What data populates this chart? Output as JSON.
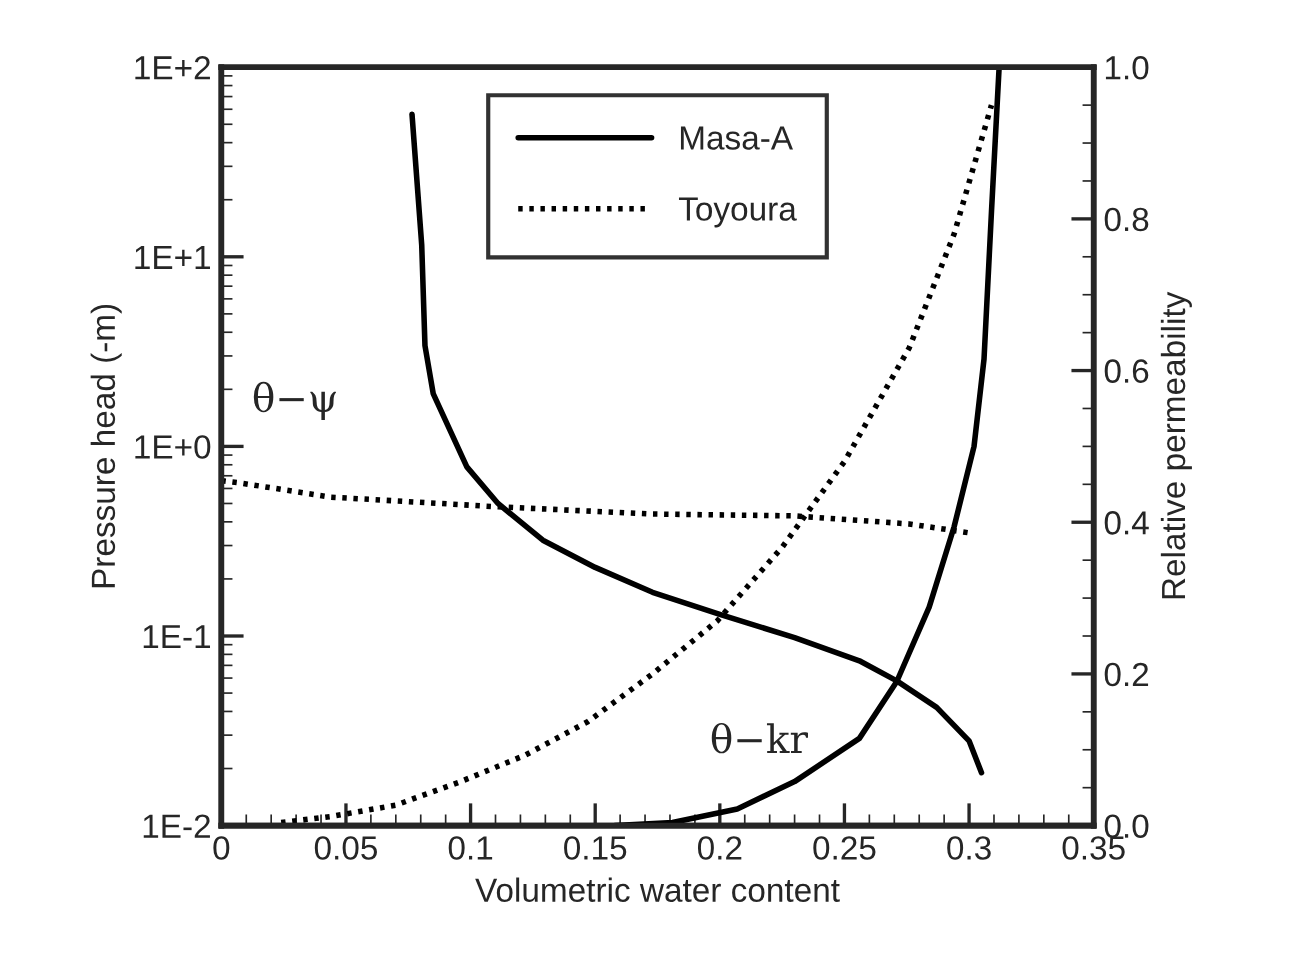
{
  "chart_data": {
    "type": "line",
    "xlabel": "Volumetric water content",
    "ylabel": "Pressure head (-m)",
    "y2label": "Relative permeability",
    "log": "y",
    "legend": "top",
    "xlim": [
      0,
      0.35
    ],
    "xticks": [
      0,
      0.05,
      0.1,
      0.15,
      0.2,
      0.25,
      0.3,
      0.35
    ],
    "ylim": [
      0.01,
      100
    ],
    "yticks": [
      {
        "value": 0.01,
        "label": "1E-2"
      },
      {
        "value": 0.1,
        "label": "1E-1"
      },
      {
        "value": 1,
        "label": "1E+0"
      },
      {
        "value": 10,
        "label": "1E+1"
      },
      {
        "value": 100,
        "label": "1E+2"
      }
    ],
    "y2lim": [
      0,
      1
    ],
    "y2ticks": [
      {
        "value": 0,
        "label": "0.0"
      },
      {
        "value": 0.2,
        "label": "0.2"
      },
      {
        "value": 0.4,
        "label": "0.4"
      },
      {
        "value": 0.6,
        "label": "0.6"
      },
      {
        "value": 0.8,
        "label": "0.8"
      },
      {
        "value": 1,
        "label": "1.0"
      }
    ],
    "series": [
      {
        "name": "Masa-A",
        "color": "#000000",
        "line_style": "solid",
        "x": [
          0.0765,
          0.0804,
          0.0817,
          0.085,
          0.0985,
          0.111,
          0.129,
          0.15,
          0.173,
          0.2,
          0.23,
          0.256,
          0.271,
          0.287,
          0.3,
          0.305
        ],
        "values": [
          56.5,
          11.5,
          3.4,
          1.9,
          0.78,
          0.5,
          0.32,
          0.23,
          0.17,
          0.13,
          0.098,
          0.074,
          0.058,
          0.042,
          0.028,
          0.019
        ]
      },
      {
        "name": "Toyoura",
        "color": "#000000",
        "line_style": "dotted",
        "x": [
          0.0,
          0.008,
          0.044,
          0.111,
          0.173,
          0.23,
          0.276,
          0.3
        ],
        "values": [
          0.66,
          0.64,
          0.54,
          0.48,
          0.44,
          0.43,
          0.39,
          0.35
        ]
      },
      {
        "color": "#000000",
        "line_style": "solid",
        "axis": "y2",
        "x": [
          0.158,
          0.181,
          0.207,
          0.23,
          0.256,
          0.271,
          0.284,
          0.294,
          0.302,
          0.306,
          0.309,
          0.312
        ],
        "values": [
          0.0,
          0.004,
          0.022,
          0.058,
          0.115,
          0.19,
          0.288,
          0.394,
          0.5,
          0.615,
          0.81,
          0.996
        ]
      },
      {
        "color": "#000000",
        "line_style": "dotted",
        "axis": "y2",
        "x": [
          0.024,
          0.044,
          0.07,
          0.096,
          0.122,
          0.147,
          0.173,
          0.199,
          0.225,
          0.25,
          0.276,
          0.294,
          0.309
        ],
        "values": [
          0.004,
          0.012,
          0.027,
          0.058,
          0.093,
          0.137,
          0.2,
          0.27,
          0.367,
          0.48,
          0.63,
          0.78,
          0.95
        ]
      }
    ],
    "annotations": [
      "θ−ψ",
      "θ−kr"
    ]
  }
}
